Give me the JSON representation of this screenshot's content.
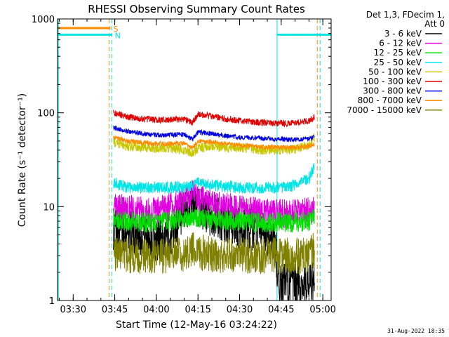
{
  "chart_data": {
    "type": "line",
    "title": "RHESSI Observing Summary Count Rates",
    "xlabel": "Start Time (12-May-16 03:24:22)",
    "ylabel": "Count Rate (s⁻¹ detector⁻¹)",
    "y_scale": "log",
    "ylim": [
      1,
      1000
    ],
    "y_ticks": [
      1,
      10,
      100,
      1000
    ],
    "y_tick_labels": [
      "1",
      "10",
      "100",
      "1000"
    ],
    "xlim": [
      "03:24:22",
      "05:03:00"
    ],
    "x_ticks": [
      "03:30",
      "03:45",
      "04:00",
      "04:15",
      "04:30",
      "04:45",
      "05:00"
    ],
    "grid": false,
    "legend_header": [
      "Det 1,3, FDecim 1,",
      "Att 0"
    ],
    "legend_placement": "right",
    "timestamp": "31-Aug-2022 18:35",
    "series": [
      {
        "name": "3 - 6 keV",
        "color": "#000000",
        "times": [
          "03:44:30",
          "03:50",
          "03:55",
          "04:00",
          "04:05",
          "04:10",
          "04:13",
          "04:15",
          "04:20",
          "04:25",
          "04:30",
          "04:35",
          "04:40",
          "04:43",
          "04:44",
          "04:50",
          "04:55",
          "04:57"
        ],
        "values": [
          6,
          5.5,
          5,
          4.5,
          5,
          8,
          12,
          10,
          8,
          6.5,
          6,
          5.5,
          5,
          4,
          1.5,
          1.5,
          1.5,
          1.5
        ]
      },
      {
        "name": "6 - 12 keV",
        "color": "#e000e0",
        "times": [
          "03:44:30",
          "03:50",
          "03:55",
          "04:00",
          "04:05",
          "04:10",
          "04:13",
          "04:15",
          "04:20",
          "04:25",
          "04:30",
          "04:35",
          "04:40",
          "04:45",
          "04:50",
          "04:55",
          "04:57"
        ],
        "values": [
          10,
          9.5,
          9,
          9,
          10,
          12,
          14,
          12,
          11,
          10,
          9.5,
          9,
          8.8,
          8.5,
          8.5,
          9,
          10
        ]
      },
      {
        "name": "12 - 25 keV",
        "color": "#00e000",
        "times": [
          "03:44:30",
          "03:50",
          "03:55",
          "04:00",
          "04:05",
          "04:10",
          "04:13",
          "04:15",
          "04:20",
          "04:25",
          "04:30",
          "04:35",
          "04:40",
          "04:45",
          "04:50",
          "04:55",
          "04:57"
        ],
        "values": [
          7.5,
          7,
          6.8,
          6.8,
          7,
          7.5,
          8,
          7.5,
          7.2,
          7,
          7,
          6.8,
          6.8,
          6.8,
          6.8,
          7,
          7.5
        ]
      },
      {
        "name": "25 - 50 keV",
        "color": "#00e5e5",
        "times": [
          "03:44:30",
          "03:50",
          "03:55",
          "04:00",
          "04:05",
          "04:10",
          "04:13",
          "04:15",
          "04:20",
          "04:25",
          "04:30",
          "04:35",
          "04:40",
          "04:45",
          "04:50",
          "04:55",
          "04:57"
        ],
        "values": [
          18,
          16,
          16,
          16,
          16,
          16,
          17,
          18,
          17,
          16.5,
          16,
          16,
          16,
          16,
          17,
          20,
          28
        ]
      },
      {
        "name": "50 - 100 keV",
        "color": "#c8c800",
        "times": [
          "03:44:30",
          "03:50",
          "03:55",
          "04:00",
          "04:05",
          "04:10",
          "04:13",
          "04:15",
          "04:20",
          "04:25",
          "04:30",
          "04:35",
          "04:40",
          "04:45",
          "04:50",
          "04:55",
          "04:57"
        ],
        "values": [
          48,
          44,
          43,
          42,
          42,
          40,
          37,
          42,
          44,
          43,
          42,
          41,
          40,
          40,
          41,
          45,
          55
        ]
      },
      {
        "name": "100 - 300 keV",
        "color": "#e00000",
        "times": [
          "03:44:30",
          "03:50",
          "03:55",
          "04:00",
          "04:05",
          "04:10",
          "04:13",
          "04:15",
          "04:20",
          "04:25",
          "04:30",
          "04:35",
          "04:40",
          "04:45",
          "04:50",
          "04:55",
          "04:57"
        ],
        "values": [
          100,
          90,
          86,
          84,
          84,
          86,
          78,
          96,
          92,
          86,
          82,
          80,
          78,
          77,
          78,
          82,
          90
        ]
      },
      {
        "name": "300 - 800 keV",
        "color": "#0000e0",
        "times": [
          "03:44:30",
          "03:50",
          "03:55",
          "04:00",
          "04:05",
          "04:10",
          "04:13",
          "04:15",
          "04:20",
          "04:25",
          "04:30",
          "04:35",
          "04:40",
          "04:45",
          "04:50",
          "04:55",
          "04:57"
        ],
        "values": [
          70,
          63,
          60,
          58,
          58,
          59,
          52,
          62,
          60,
          57,
          55,
          54,
          53,
          52,
          52,
          53,
          55
        ]
      },
      {
        "name": "800 - 7000 keV",
        "color": "#ff8c00",
        "times": [
          "03:44:30",
          "03:50",
          "03:55",
          "04:00",
          "04:05",
          "04:10",
          "04:13",
          "04:15",
          "04:20",
          "04:25",
          "04:30",
          "04:35",
          "04:40",
          "04:45",
          "04:50",
          "04:55",
          "04:57"
        ],
        "values": [
          55,
          50,
          48,
          47,
          47,
          47,
          42,
          50,
          49,
          47,
          45,
          44,
          43,
          43,
          43,
          44,
          46
        ]
      },
      {
        "name": "7000 - 15000 keV",
        "color": "#808000",
        "times": [
          "03:44:30",
          "03:50",
          "03:55",
          "04:00",
          "04:05",
          "04:10",
          "04:13",
          "04:15",
          "04:20",
          "04:25",
          "04:30",
          "04:35",
          "04:40",
          "04:45",
          "04:50",
          "04:55",
          "04:57"
        ],
        "values": [
          3,
          3,
          3,
          3,
          3,
          3.2,
          3.5,
          3.3,
          3.1,
          3,
          3,
          3,
          3,
          3,
          3,
          3,
          3.5
        ]
      }
    ],
    "annotations": [
      {
        "label": "S",
        "color": "#ff8c00",
        "value": 800,
        "segments": [
          [
            "03:24:22",
            "03:43:30"
          ]
        ],
        "dashed_times": [
          "03:43:00",
          "04:58:00"
        ]
      },
      {
        "label": "N",
        "color": "#00e5e5",
        "value": 680,
        "segments": [
          [
            "03:24:22",
            "03:44:00"
          ],
          [
            "04:43:30",
            "05:03:00"
          ]
        ],
        "solid_times": [
          "03:24:40",
          "04:43:30"
        ],
        "dashed_times": [
          "03:44:00",
          "04:59:00"
        ]
      }
    ]
  }
}
